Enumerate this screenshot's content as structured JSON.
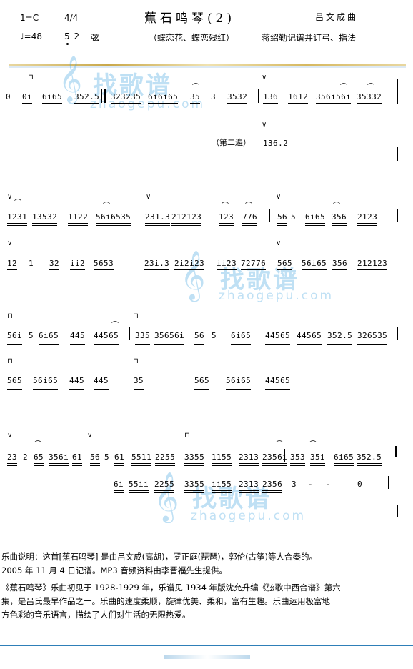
{
  "header": {
    "key": "1=C",
    "time": "4/4",
    "title": "蕉石鸣琴(2)",
    "composer": "吕文成曲",
    "tempo": "♩=48",
    "tuning_notes": "5 2",
    "tuning_label": "弦",
    "subtitle": "（蝶恋花、蝶恋残红）",
    "credit": "蒋绍勤记谱并订弓、指法"
  },
  "watermark": {
    "cn": "找歌谱",
    "en": "zhaogepu.com"
  },
  "rows": [
    {
      "id": "r1",
      "items": [
        "0",
        "0i",
        "6i65",
        "352.5",
        "323235",
        "6i6i65",
        "35",
        "3",
        "3532",
        "136",
        "1612",
        "356i56i",
        "35332"
      ]
    },
    {
      "id": "r1b",
      "label": "（第二遍）",
      "items": [
        "136.2"
      ]
    },
    {
      "id": "r2",
      "items": [
        "1231",
        "13532",
        "1122",
        "56i6535",
        "231.3",
        "212123",
        "123",
        "776",
        "56",
        "5",
        "6i65",
        "356",
        "2123"
      ]
    },
    {
      "id": "r3",
      "items": [
        "12",
        "1",
        "32",
        "ii2",
        "5653",
        "23i.3",
        "2i2i23",
        "ii23",
        "72776",
        "565",
        "56i65",
        "356",
        "212123"
      ]
    },
    {
      "id": "r4",
      "items": [
        "56i",
        "5",
        "6i65",
        "445",
        "44565",
        "335",
        "35656i",
        "56",
        "5",
        "6i65",
        "44565",
        "44565",
        "352.5",
        "326535"
      ]
    },
    {
      "id": "r5",
      "items": [
        "565",
        "56i65",
        "445",
        "445",
        "35",
        "565",
        "56i65",
        "44565"
      ]
    },
    {
      "id": "r6",
      "items": [
        "23",
        "2",
        "65",
        "356i",
        "61",
        "56",
        "5",
        "61",
        "5511",
        "2255",
        "3355",
        "1155",
        "2313",
        "2356i",
        "353",
        "35i",
        "6i65",
        "352.5"
      ]
    },
    {
      "id": "r7",
      "items": [
        "6i",
        "55ii",
        "2255",
        "3355",
        "ii55",
        "2313",
        "2356",
        "3",
        "-",
        "-",
        "0"
      ]
    }
  ],
  "symbols": {
    "bow": "∨",
    "tie": "⌒",
    "up_bow": "⊓"
  },
  "description": {
    "p1": "乐曲说明：这首[蕉石鸣琴] 是由吕文成(高胡)，罗正庭(琵琶)，郭伦(古筝)等人合奏的。",
    "p2": "2005 年 11 月 4 日记谱。MP3 音频资料由李晋福先生提供。",
    "p3a": "《蕉石鸣琴》乐曲初见于 1928-1929 年，乐谱见 1934 年版沈允升编《弦歌中西合谱》第六",
    "p3b": "集，是吕氏最早作品之一。乐曲的速度柔顺，旋律优美、柔和，富有生趣。乐曲运用极富地",
    "p3c": "方色彩的音乐语言，描绘了人们对生活的无限热爱。"
  }
}
